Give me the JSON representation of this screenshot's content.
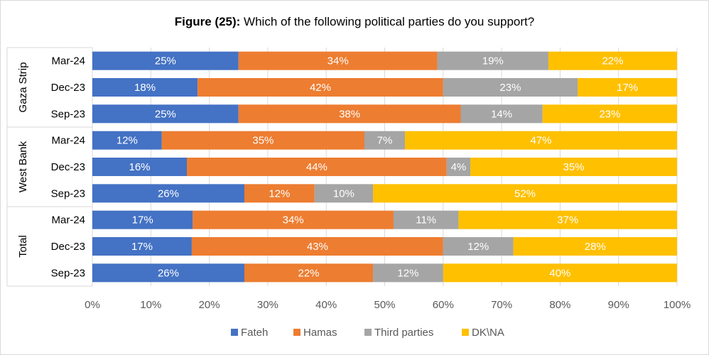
{
  "chart_data": {
    "type": "bar",
    "orientation": "horizontal",
    "stacked": "percent",
    "title_bold": "Figure (25):",
    "title_rest": " Which of the following political parties do you support?",
    "groups": [
      {
        "name": "Gaza Strip",
        "categories": [
          "Mar-24",
          "Dec-23",
          "Sep-23"
        ]
      },
      {
        "name": "West Bank",
        "categories": [
          "Mar-24",
          "Dec-23",
          "Sep-23"
        ]
      },
      {
        "name": "Total",
        "categories": [
          "Mar-24",
          "Dec-23",
          "Sep-23"
        ]
      }
    ],
    "series": [
      {
        "name": "Fateh",
        "color": "#4472c4",
        "values": [
          25,
          18,
          25,
          12,
          16,
          26,
          17,
          17,
          26
        ]
      },
      {
        "name": "Hamas",
        "color": "#ed7d31",
        "values": [
          34,
          42,
          38,
          35,
          44,
          12,
          34,
          43,
          22
        ]
      },
      {
        "name": "Third parties",
        "color": "#a5a5a5",
        "values": [
          19,
          23,
          14,
          7,
          4,
          10,
          11,
          12,
          12
        ]
      },
      {
        "name": "DK\\NA",
        "color": "#ffc000",
        "values": [
          22,
          17,
          23,
          47,
          35,
          52,
          37,
          28,
          40
        ]
      }
    ],
    "x_ticks": [
      "0%",
      "10%",
      "20%",
      "30%",
      "40%",
      "50%",
      "60%",
      "70%",
      "80%",
      "90%",
      "100%"
    ],
    "xlim": [
      0,
      100
    ],
    "grid": true,
    "legend_position": "bottom"
  }
}
